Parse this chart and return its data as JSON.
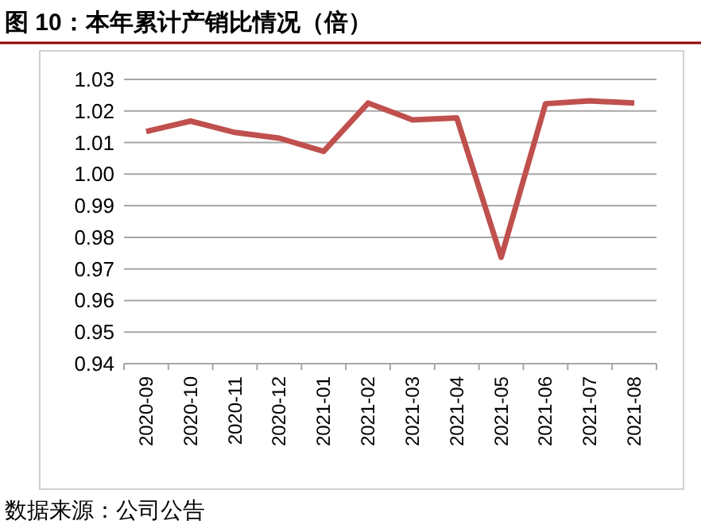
{
  "chart_data": {
    "type": "line",
    "title": "图 10：本年累计产销比情况（倍）",
    "categories": [
      "2020-09",
      "2020-10",
      "2020-11",
      "2020-12",
      "2021-01",
      "2021-02",
      "2021-03",
      "2021-04",
      "2021-05",
      "2021-06",
      "2021-07",
      "2021-08"
    ],
    "series": [
      {
        "color": "#c0504d",
        "values": [
          1.0135,
          1.0168,
          1.0132,
          1.0114,
          1.0072,
          1.0225,
          1.0172,
          1.0178,
          0.9737,
          1.0223,
          1.0232,
          1.0225
        ]
      }
    ],
    "ylim": [
      0.94,
      1.03
    ],
    "yticks": [
      {
        "value": 0.94,
        "label": "0.94"
      },
      {
        "value": 0.95,
        "label": "0.95"
      },
      {
        "value": 0.96,
        "label": "0.96"
      },
      {
        "value": 0.97,
        "label": "0.97"
      },
      {
        "value": 0.98,
        "label": "0.98"
      },
      {
        "value": 0.99,
        "label": "0.99"
      },
      {
        "value": 1.0,
        "label": "1.00"
      },
      {
        "value": 1.01,
        "label": "1.01"
      },
      {
        "value": 1.02,
        "label": "1.02"
      },
      {
        "value": 1.03,
        "label": "1.03"
      }
    ],
    "grid": "y",
    "marker": "none",
    "line_style": "solid",
    "annotations": [
      "数据来源：公司公告"
    ]
  }
}
